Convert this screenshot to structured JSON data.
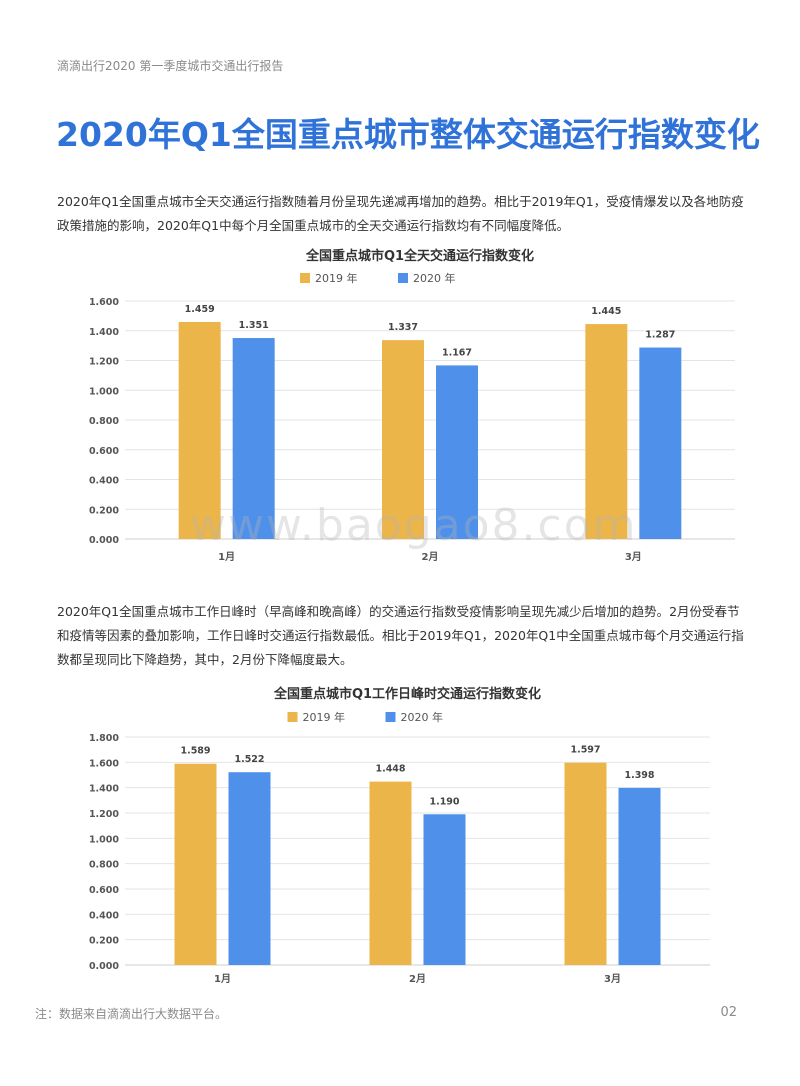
{
  "header": {
    "text": "滴滴出行2020 第一季度城市交通出行报告"
  },
  "title": "2020年Q1全国重点城市整体交通运行指数变化",
  "paragraphs": [
    "2020年Q1全国重点城市全天交通运行指数随着月份呈现先递减再增加的趋势。相比于2019年Q1，受疫情爆发以及各地防疫政策措施的影响，2020年Q1中每个月全国重点城市的全天交通运行指数均有不同幅度降低。",
    "2020年Q1全国重点城市工作日峰时（早高峰和晚高峰）的交通运行指数受疫情影响呈现先减少后增加的趋势。2月份受春节和疫情等因素的叠加影响，工作日峰时交通运行指数最低。相比于2019年Q1，2020年Q1中全国重点城市每个月交通运行指数都呈现同比下降趋势，其中，2月份下降幅度最大。"
  ],
  "watermark": "www.baogao8.com",
  "footnote": "注：数据来自滴滴出行大数据平台。",
  "page_number": "02",
  "colors": {
    "title": "#2f72d8",
    "series_2019": "#ecb54a",
    "series_2020": "#4f90ea"
  },
  "chart_data": [
    {
      "type": "bar",
      "title": "全国重点城市Q1全天交通运行指数变化",
      "categories": [
        "1月",
        "2月",
        "3月"
      ],
      "series": [
        {
          "name": "2019 年",
          "values": [
            1.459,
            1.337,
            1.445
          ],
          "labels": [
            "1.459",
            "1.337",
            "1.445"
          ]
        },
        {
          "name": "2020 年",
          "values": [
            1.351,
            1.167,
            1.287
          ],
          "labels": [
            "1.351",
            "1.167",
            "1.287"
          ]
        }
      ],
      "ylim": [
        0,
        1.6
      ],
      "yticks": [
        "0.000",
        "0.200",
        "0.400",
        "0.600",
        "0.800",
        "1.000",
        "1.200",
        "1.400",
        "1.600"
      ],
      "grid": true,
      "legend": "top"
    },
    {
      "type": "bar",
      "title": "全国重点城市Q1工作日峰时交通运行指数变化",
      "categories": [
        "1月",
        "2月",
        "3月"
      ],
      "series": [
        {
          "name": "2019 年",
          "values": [
            1.589,
            1.448,
            1.597
          ],
          "labels": [
            "1.589",
            "1.448",
            "1.597"
          ]
        },
        {
          "name": "2020 年",
          "values": [
            1.522,
            1.19,
            1.398
          ],
          "labels": [
            "1.522",
            "1.190",
            "1.398"
          ]
        }
      ],
      "ylim": [
        0,
        1.8
      ],
      "yticks": [
        "0.000",
        "0.200",
        "0.400",
        "0.600",
        "0.800",
        "1.000",
        "1.200",
        "1.400",
        "1.600",
        "1.800"
      ],
      "grid": true,
      "legend": "top"
    }
  ]
}
